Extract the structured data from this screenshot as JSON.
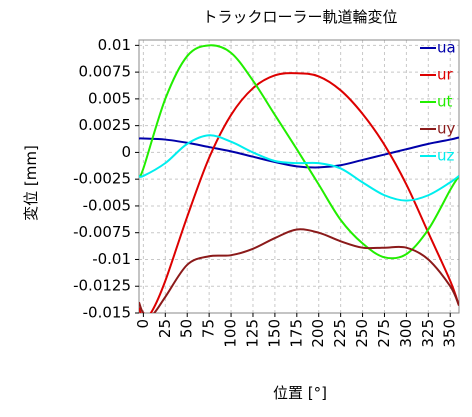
{
  "chart_data": {
    "type": "line",
    "title": "トラックローラー軌道輪変位",
    "xlabel": "位置 [°]",
    "ylabel": "変位 [mm]",
    "xlim": [
      -5,
      360
    ],
    "ylim": [
      -0.015,
      0.0105
    ],
    "x_ticks": [
      "0",
      "25",
      "50",
      "75",
      "100",
      "125",
      "150",
      "175",
      "200",
      "225",
      "250",
      "275",
      "300",
      "325",
      "350"
    ],
    "y_ticks": [
      "0.01",
      "0.0075",
      "0.005",
      "0.0025",
      "0",
      "-0.0025",
      "-0.005",
      "-0.0075",
      "-0.01",
      "-0.0125",
      "-0.015"
    ],
    "grid": true,
    "legend": "top-right",
    "series": [
      {
        "name": "ua",
        "color": "#0000aa",
        "x": [
          -5,
          0,
          25,
          50,
          75,
          100,
          125,
          150,
          175,
          200,
          225,
          250,
          275,
          300,
          325,
          350,
          360
        ],
        "y": [
          0.0013,
          0.0013,
          0.0012,
          0.0009,
          0.0005,
          0.0001,
          -0.0004,
          -0.0009,
          -0.0013,
          -0.0014,
          -0.0012,
          -0.0007,
          -0.0002,
          0.0003,
          0.0008,
          0.0012,
          0.0014
        ]
      },
      {
        "name": "ur",
        "color": "#dd0000",
        "x": [
          -5,
          0,
          10,
          25,
          50,
          75,
          100,
          125,
          150,
          175,
          200,
          225,
          250,
          275,
          300,
          325,
          350,
          360
        ],
        "y": [
          -0.0145,
          -0.0155,
          -0.0148,
          -0.012,
          -0.006,
          -0.0005,
          0.0035,
          0.006,
          0.0072,
          0.0074,
          0.0071,
          0.0058,
          0.0036,
          0.0007,
          -0.003,
          -0.0075,
          -0.012,
          -0.0143
        ]
      },
      {
        "name": "ut",
        "color": "#22ee00",
        "x": [
          -5,
          0,
          25,
          50,
          75,
          100,
          125,
          150,
          175,
          200,
          225,
          250,
          275,
          300,
          325,
          350,
          360
        ],
        "y": [
          -0.0022,
          -0.0015,
          0.005,
          0.009,
          0.01,
          0.0093,
          0.0067,
          0.0035,
          0.0003,
          -0.003,
          -0.0063,
          -0.0085,
          -0.0098,
          -0.0095,
          -0.0072,
          -0.0035,
          -0.0022
        ]
      },
      {
        "name": "uy",
        "color": "#8b1a1a",
        "x": [
          -5,
          0,
          10,
          25,
          50,
          75,
          100,
          125,
          150,
          175,
          200,
          225,
          250,
          275,
          300,
          325,
          350,
          360
        ],
        "y": [
          -0.014,
          -0.015,
          -0.0152,
          -0.0135,
          -0.0105,
          -0.0097,
          -0.0096,
          -0.009,
          -0.008,
          -0.0072,
          -0.0075,
          -0.0083,
          -0.0089,
          -0.0089,
          -0.0089,
          -0.01,
          -0.0125,
          -0.0143
        ]
      },
      {
        "name": "uz",
        "color": "#00eeee",
        "x": [
          -5,
          0,
          25,
          50,
          75,
          100,
          125,
          150,
          175,
          200,
          225,
          250,
          275,
          300,
          325,
          350,
          360
        ],
        "y": [
          -0.0022,
          -0.0022,
          -0.001,
          0.0008,
          0.0016,
          0.001,
          0.0,
          -0.0008,
          -0.001,
          -0.001,
          -0.0015,
          -0.0028,
          -0.004,
          -0.0045,
          -0.004,
          -0.0028,
          -0.0022
        ]
      }
    ]
  }
}
